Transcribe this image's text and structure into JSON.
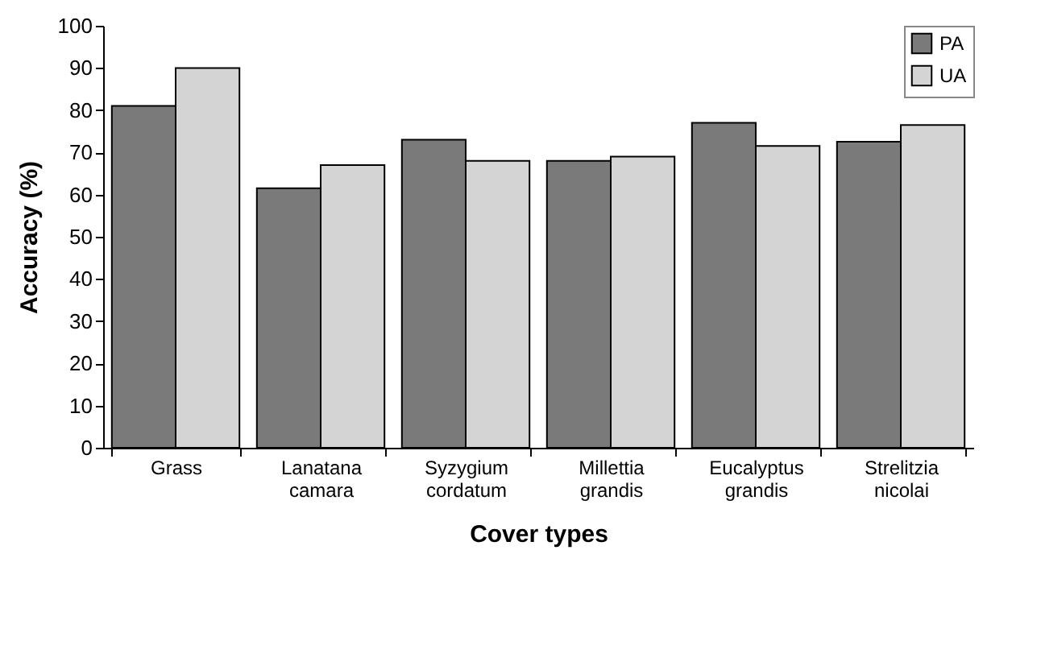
{
  "chart_data": {
    "type": "bar",
    "xlabel": "Cover types",
    "ylabel": "Accuracy (%)",
    "categories": [
      "Grass",
      "Lanatana camara",
      "Syzygium cordatum",
      "Millettia grandis",
      "Eucalyptus grandis",
      "Strelitzia nicolai"
    ],
    "series": [
      {
        "name": "PA",
        "color": "#7a7a7a",
        "values": [
          81,
          61.5,
          73,
          68,
          77,
          72.5
        ]
      },
      {
        "name": "UA",
        "color": "#d4d4d4",
        "values": [
          90,
          67,
          68,
          69,
          71.5,
          76.5
        ]
      }
    ],
    "ylim": [
      0,
      100
    ],
    "yticks": [
      0,
      10,
      20,
      30,
      40,
      50,
      60,
      70,
      80,
      90,
      100
    ],
    "grid": false,
    "legend": "top right"
  }
}
